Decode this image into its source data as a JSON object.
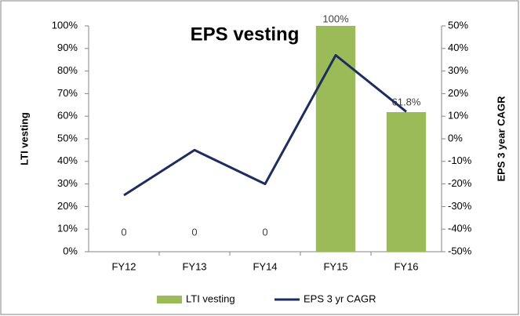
{
  "chart_data": {
    "type": "bar",
    "title": "EPS vesting",
    "categories": [
      "FY12",
      "FY13",
      "FY14",
      "FY15",
      "FY16"
    ],
    "ylabel": "LTI vesting",
    "y2label": "EPS 3 year CAGR",
    "series": [
      {
        "name": "LTI vesting",
        "type": "bar",
        "color": "#9bbb59",
        "values": [
          0,
          0,
          0,
          100,
          61.8
        ],
        "value_labels": [
          "0",
          "0",
          "0",
          "100%",
          "61.8%"
        ]
      },
      {
        "name": "EPS 3 yr CAGR",
        "type": "line",
        "axis": "y2",
        "color": "#1f2d5c",
        "values": [
          -25,
          -5,
          -20,
          37,
          12
        ]
      }
    ],
    "ylim": [
      0,
      100
    ],
    "yticks": [
      {
        "value": 0,
        "label": "0%"
      },
      {
        "value": 10,
        "label": "10%"
      },
      {
        "value": 20,
        "label": "20%"
      },
      {
        "value": 30,
        "label": "30%"
      },
      {
        "value": 40,
        "label": "40%"
      },
      {
        "value": 50,
        "label": "50%"
      },
      {
        "value": 60,
        "label": "60%"
      },
      {
        "value": 70,
        "label": "70%"
      },
      {
        "value": 80,
        "label": "80%"
      },
      {
        "value": 90,
        "label": "90%"
      },
      {
        "value": 100,
        "label": "100%"
      }
    ],
    "y2lim": [
      -50,
      50
    ],
    "y2ticks": [
      {
        "value": -50,
        "label": "-50%"
      },
      {
        "value": -40,
        "label": "-40%"
      },
      {
        "value": -30,
        "label": "-30%"
      },
      {
        "value": -20,
        "label": "-20%"
      },
      {
        "value": -10,
        "label": "-10%"
      },
      {
        "value": 0,
        "label": "0%"
      },
      {
        "value": 10,
        "label": "10%"
      },
      {
        "value": 20,
        "label": "20%"
      },
      {
        "value": 30,
        "label": "30%"
      },
      {
        "value": 40,
        "label": "40%"
      },
      {
        "value": 50,
        "label": "50%"
      }
    ],
    "grid": false,
    "legend": "bottom"
  }
}
